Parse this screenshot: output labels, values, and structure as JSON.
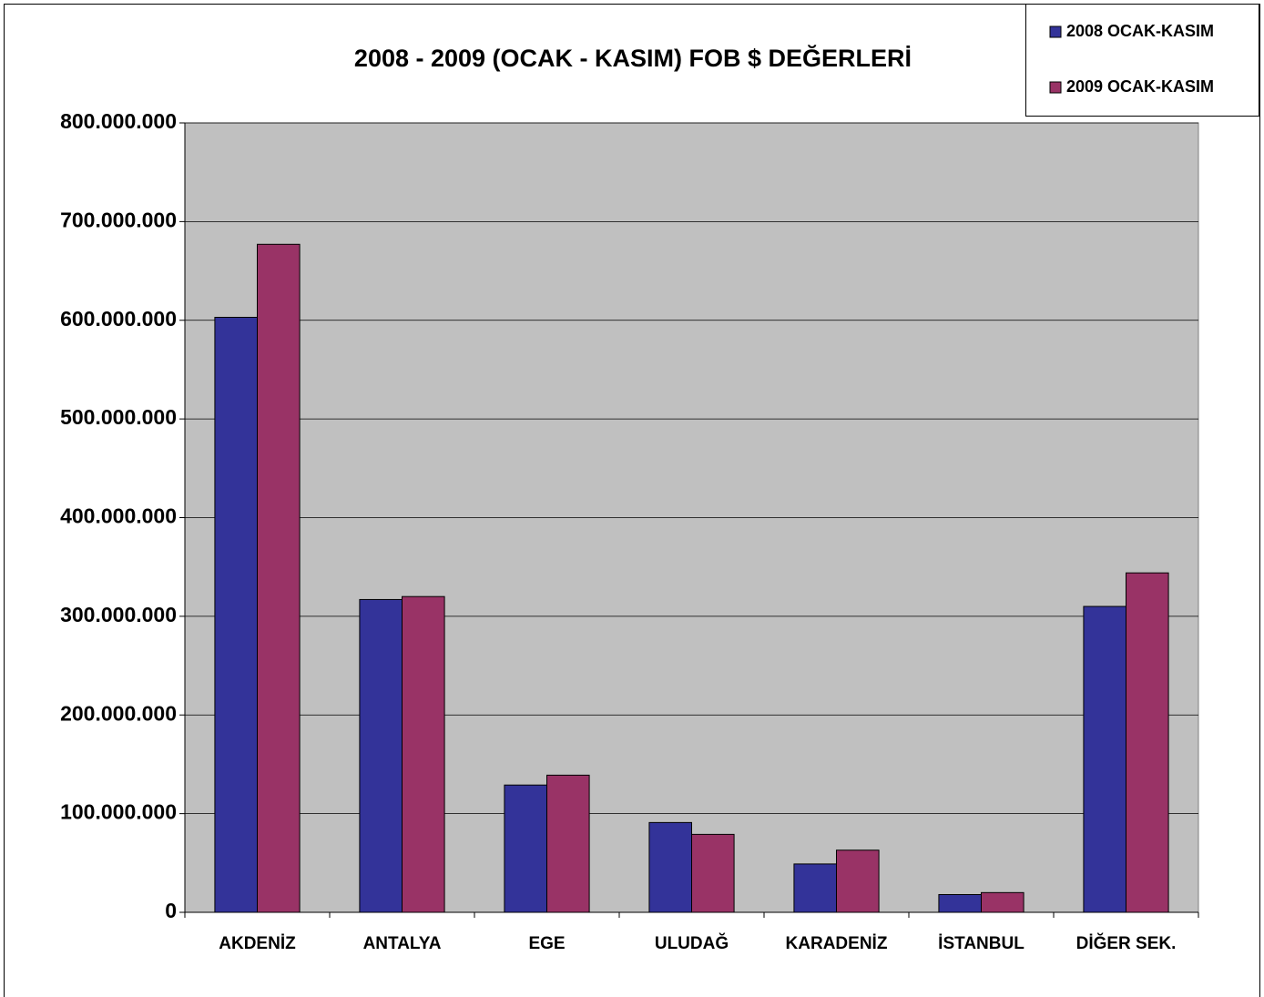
{
  "chart_data": {
    "type": "bar",
    "title": "2008 - 2009 (OCAK - KASIM) FOB $ DEĞERLERİ",
    "categories": [
      "AKDENİZ",
      "ANTALYA",
      "EGE",
      "ULUDAĞ",
      "KARADENİZ",
      "İSTANBUL",
      "DİĞER SEK."
    ],
    "series": [
      {
        "name": "2008 OCAK-KASIM",
        "color": "#333399",
        "values": [
          603000000,
          317000000,
          129000000,
          91000000,
          49000000,
          18000000,
          310000000
        ]
      },
      {
        "name": "2009 OCAK-KASIM",
        "color": "#993366",
        "values": [
          677000000,
          320000000,
          139000000,
          79000000,
          63000000,
          20000000,
          344000000
        ]
      }
    ],
    "ylim": [
      0,
      800000000
    ],
    "yticks": [
      0,
      {
        "value": 100000000,
        "label": "100.000.000"
      },
      {
        "value": 200000000,
        "label": "200.000.000"
      },
      {
        "value": 300000000,
        "label": "300.000.000"
      },
      {
        "value": 400000000,
        "label": "400.000.000"
      },
      {
        "value": 500000000,
        "label": "500.000.000"
      },
      {
        "value": 600000000,
        "label": "600.000.000"
      },
      {
        "value": 700000000,
        "label": "700.000.000"
      },
      {
        "value": 800000000,
        "label": "800.000.000"
      }
    ],
    "grid": true,
    "legend": "top-right",
    "plot_background": "#c0c0c0"
  }
}
